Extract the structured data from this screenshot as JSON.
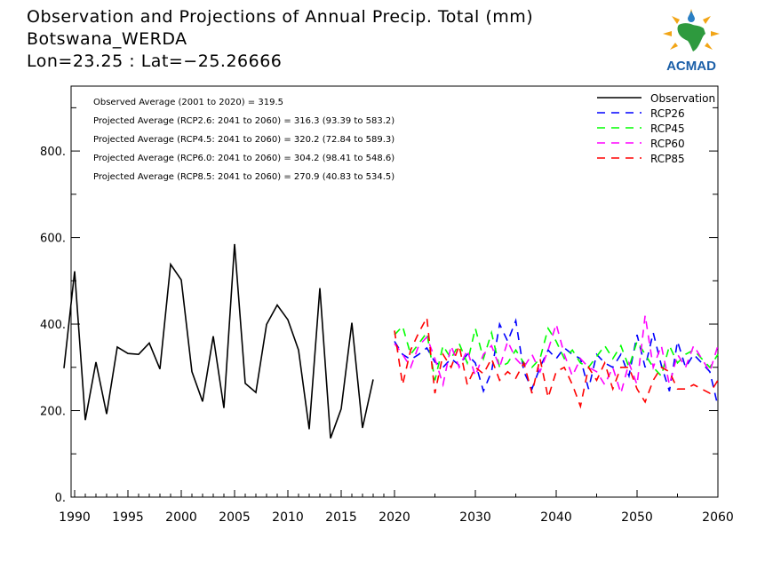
{
  "header": {
    "title": "Observation and Projections of Annual Precip. Total (mm)",
    "station": "Botswana_WERDA",
    "coords": "Lon=23.25 : Lat=−25.26666"
  },
  "logo": {
    "text": "ACMAD",
    "icon": "acmad-africa-logo",
    "colors": {
      "sun": "#f2a516",
      "africa": "#2e9a3e",
      "drop": "#2a7fc4",
      "text": "#1b5fa8"
    }
  },
  "chart_data": {
    "type": "line",
    "title": "Observation and Projections of Annual Precip. Total (mm)",
    "xlim": [
      1989,
      2060
    ],
    "ylim": [
      0,
      950
    ],
    "x_ticks": [
      1990,
      1995,
      2000,
      2005,
      2010,
      2015,
      2020,
      2030,
      2040,
      2050,
      2060
    ],
    "y_ticks": [
      0,
      200,
      400,
      600,
      800
    ],
    "y_tick_labels": [
      "0.",
      "200.",
      "400.",
      "600.",
      "800."
    ],
    "grid": false,
    "legend_position": "top-right",
    "annotations": [
      "Observed Average (2001 to 2020) = 319.5",
      "Projected Average (RCP2.6: 2041 to 2060) = 316.3 (93.39 to 583.2)",
      "Projected Average (RCP4.5: 2041 to 2060) = 320.2 (72.84 to 589.3)",
      "Projected Average (RCP6.0: 2041 to 2060) = 304.2 (98.41 to 548.6)",
      "Projected Average (RCP8.5: 2041 to 2060) = 270.9 (40.83 to 534.5)"
    ],
    "series": [
      {
        "name": "Observation",
        "color": "#000000",
        "dash": "solid",
        "x": [
          1989,
          1990,
          1991,
          1992,
          1993,
          1994,
          1995,
          1996,
          1997,
          1998,
          1999,
          2000,
          2001,
          2002,
          2003,
          2004,
          2005,
          2006,
          2007,
          2008,
          2009,
          2010,
          2011,
          2012,
          2013,
          2014,
          2015,
          2016,
          2017,
          2018,
          2019,
          2020
        ],
        "values": [
          298,
          522,
          178,
          312,
          192,
          347,
          332,
          330,
          356,
          296,
          538,
          502,
          290,
          221,
          372,
          206,
          585,
          263,
          242,
          399,
          444,
          410,
          340,
          157,
          483,
          136,
          204,
          403,
          160,
          272,
          null,
          null
        ]
      },
      {
        "name": "RCP26",
        "color": "#0000ff",
        "dash": "dashed",
        "x": [
          2020,
          2021,
          2022,
          2023,
          2024,
          2025,
          2026,
          2027,
          2028,
          2029,
          2030,
          2031,
          2032,
          2033,
          2034,
          2035,
          2036,
          2037,
          2038,
          2039,
          2040,
          2041,
          2042,
          2043,
          2044,
          2045,
          2046,
          2047,
          2048,
          2049,
          2050,
          2051,
          2052,
          2053,
          2054,
          2055,
          2056,
          2057,
          2058,
          2059,
          2060
        ],
        "values": [
          360,
          330,
          318,
          330,
          345,
          312,
          300,
          320,
          305,
          330,
          310,
          245,
          290,
          400,
          360,
          408,
          290,
          250,
          300,
          340,
          320,
          345,
          330,
          320,
          250,
          330,
          310,
          300,
          330,
          280,
          375,
          300,
          380,
          305,
          245,
          360,
          300,
          330,
          310,
          290,
          210
        ]
      },
      {
        "name": "RCP45",
        "color": "#00ff00",
        "dash": "dashed",
        "x": [
          2020,
          2021,
          2022,
          2023,
          2024,
          2025,
          2026,
          2027,
          2028,
          2029,
          2030,
          2031,
          2032,
          2033,
          2034,
          2035,
          2036,
          2037,
          2038,
          2039,
          2040,
          2041,
          2042,
          2043,
          2044,
          2045,
          2046,
          2047,
          2048,
          2049,
          2050,
          2051,
          2052,
          2053,
          2054,
          2055,
          2056,
          2057,
          2058,
          2059,
          2060
        ],
        "values": [
          375,
          395,
          330,
          355,
          380,
          270,
          350,
          320,
          355,
          310,
          390,
          320,
          380,
          300,
          310,
          340,
          310,
          300,
          320,
          390,
          360,
          320,
          340,
          310,
          300,
          325,
          350,
          320,
          350,
          300,
          360,
          330,
          300,
          280,
          350,
          310,
          330,
          340,
          320,
          300,
          330
        ]
      },
      {
        "name": "RCP60",
        "color": "#ff00ff",
        "dash": "dashed",
        "x": [
          2020,
          2021,
          2022,
          2023,
          2024,
          2025,
          2026,
          2027,
          2028,
          2029,
          2030,
          2031,
          2032,
          2033,
          2034,
          2035,
          2036,
          2037,
          2038,
          2039,
          2040,
          2041,
          2042,
          2043,
          2044,
          2045,
          2046,
          2047,
          2048,
          2049,
          2050,
          2051,
          2052,
          2053,
          2054,
          2055,
          2056,
          2057,
          2058,
          2059,
          2060
        ],
        "values": [
          355,
          330,
          300,
          350,
          370,
          320,
          260,
          350,
          300,
          340,
          280,
          330,
          350,
          300,
          360,
          320,
          300,
          330,
          290,
          340,
          400,
          330,
          280,
          320,
          300,
          290,
          260,
          300,
          240,
          310,
          260,
          420,
          300,
          350,
          260,
          330,
          300,
          350,
          320,
          290,
          350
        ]
      },
      {
        "name": "RCP85",
        "color": "#ff0000",
        "dash": "dashed",
        "x": [
          2020,
          2021,
          2022,
          2023,
          2024,
          2025,
          2026,
          2027,
          2028,
          2029,
          2030,
          2031,
          2032,
          2033,
          2034,
          2035,
          2036,
          2037,
          2038,
          2039,
          2040,
          2041,
          2042,
          2043,
          2044,
          2045,
          2046,
          2047,
          2048,
          2049,
          2050,
          2051,
          2052,
          2053,
          2054,
          2055,
          2056,
          2057,
          2058,
          2059,
          2060
        ],
        "values": [
          385,
          260,
          340,
          380,
          415,
          240,
          330,
          300,
          350,
          260,
          300,
          285,
          320,
          270,
          290,
          275,
          310,
          240,
          320,
          230,
          290,
          300,
          260,
          210,
          300,
          270,
          310,
          250,
          300,
          300,
          250,
          220,
          270,
          300,
          290,
          250,
          250,
          260,
          250,
          240,
          270
        ]
      }
    ]
  }
}
